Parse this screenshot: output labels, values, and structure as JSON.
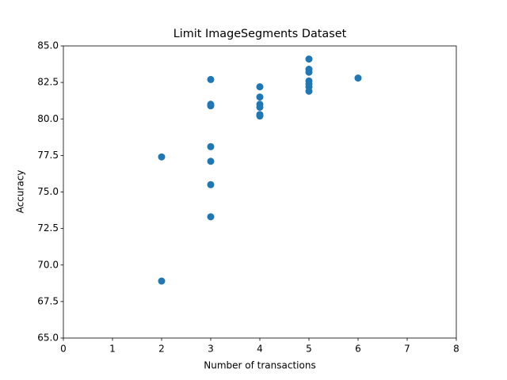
{
  "chart_data": {
    "type": "scatter",
    "title": "Limit ImageSegments Dataset",
    "x_label": "Number of transactions",
    "y_label": "Accuracy",
    "series": [
      {
        "color": "#1f77b4",
        "x": [
          2,
          2,
          3,
          3,
          3,
          3,
          3,
          3,
          3,
          4,
          4,
          4,
          4,
          4,
          4,
          5,
          5,
          5,
          5,
          5,
          5,
          5,
          6
        ],
        "values": [
          77.4,
          68.9,
          82.7,
          81.0,
          80.9,
          78.1,
          77.1,
          75.5,
          73.3,
          82.2,
          81.5,
          81.0,
          80.8,
          80.3,
          80.2,
          84.1,
          83.4,
          83.2,
          82.6,
          82.4,
          82.2,
          81.9,
          82.8
        ]
      }
    ],
    "xlim": [
      0,
      8
    ],
    "xticks": [
      0,
      1,
      2,
      3,
      4,
      5,
      6,
      7,
      8
    ],
    "ylim": [
      65,
      85
    ],
    "yticks": [
      {
        "value": 65,
        "label": "65.0"
      },
      {
        "value": 67.5,
        "label": "67.5"
      },
      {
        "value": 70,
        "label": "70.0"
      },
      {
        "value": 72.5,
        "label": "72.5"
      },
      {
        "value": 75,
        "label": "75.0"
      },
      {
        "value": 77.5,
        "label": "77.5"
      },
      {
        "value": 80,
        "label": "80.0"
      },
      {
        "value": 82.5,
        "label": "82.5"
      },
      {
        "value": 85,
        "label": "85.0"
      }
    ]
  }
}
